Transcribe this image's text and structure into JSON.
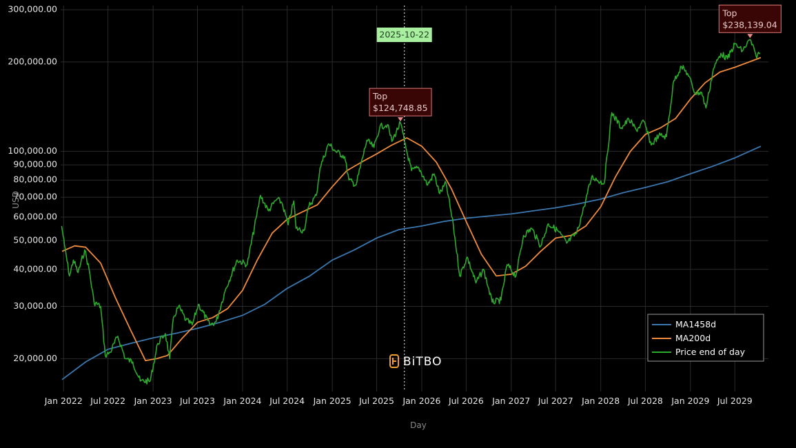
{
  "chart_data": {
    "type": "line",
    "title": "",
    "xlabel": "Day",
    "ylabel": "USD",
    "y_scale": "log",
    "ylim": [
      15500,
      310000
    ],
    "xlim": [
      "2021-12-20",
      "2029-11-15"
    ],
    "grid": true,
    "legend_position": "bottom-right",
    "y_ticks": [
      {
        "value": 20000,
        "label": "20,000.00"
      },
      {
        "value": 30000,
        "label": "30,000.00"
      },
      {
        "value": 40000,
        "label": "40,000.00"
      },
      {
        "value": 50000,
        "label": "50,000.00"
      },
      {
        "value": 60000,
        "label": "60,000.00"
      },
      {
        "value": 70000,
        "label": "70,000.00"
      },
      {
        "value": 80000,
        "label": "80,000.00"
      },
      {
        "value": 90000,
        "label": "90,000.00"
      },
      {
        "value": 100000,
        "label": "100,000.00"
      },
      {
        "value": 200000,
        "label": "200,000.00"
      },
      {
        "value": 300000,
        "label": "300,000.00"
      }
    ],
    "x_ticks": [
      {
        "date": "2022-01-01",
        "label": "Jan 2022"
      },
      {
        "date": "2022-07-01",
        "label": "Jul 2022"
      },
      {
        "date": "2023-01-01",
        "label": "Jan 2023"
      },
      {
        "date": "2023-07-01",
        "label": "Jul 2023"
      },
      {
        "date": "2024-01-01",
        "label": "Jan 2024"
      },
      {
        "date": "2024-07-01",
        "label": "Jul 2024"
      },
      {
        "date": "2025-01-01",
        "label": "Jan 2025"
      },
      {
        "date": "2025-07-01",
        "label": "Jul 2025"
      },
      {
        "date": "2026-01-01",
        "label": "Jan 2026"
      },
      {
        "date": "2026-07-01",
        "label": "Jul 2026"
      },
      {
        "date": "2027-01-01",
        "label": "Jan 2027"
      },
      {
        "date": "2027-07-01",
        "label": "Jul 2027"
      },
      {
        "date": "2028-01-01",
        "label": "Jan 2028"
      },
      {
        "date": "2028-07-01",
        "label": "Jul 2028"
      },
      {
        "date": "2029-01-01",
        "label": "Jan 2029"
      },
      {
        "date": "2029-07-01",
        "label": "Jul 2029"
      }
    ],
    "series": [
      {
        "name": "MA1458d",
        "color": "#3b78b0",
        "points": [
          [
            "2021-12-26",
            17000
          ],
          [
            "2022-04-01",
            19500
          ],
          [
            "2022-07-01",
            21500
          ],
          [
            "2022-10-01",
            22500
          ],
          [
            "2023-01-01",
            23500
          ],
          [
            "2023-04-01",
            24300
          ],
          [
            "2023-07-01",
            25300
          ],
          [
            "2023-10-01",
            26500
          ],
          [
            "2024-01-01",
            28000
          ],
          [
            "2024-04-01",
            30500
          ],
          [
            "2024-07-01",
            34500
          ],
          [
            "2024-10-01",
            38000
          ],
          [
            "2025-01-01",
            43000
          ],
          [
            "2025-04-01",
            46500
          ],
          [
            "2025-07-01",
            51000
          ],
          [
            "2025-10-01",
            54500
          ],
          [
            "2026-01-01",
            56000
          ],
          [
            "2026-04-01",
            58000
          ],
          [
            "2026-07-01",
            59500
          ],
          [
            "2026-10-01",
            60500
          ],
          [
            "2027-01-01",
            61500
          ],
          [
            "2027-04-01",
            63000
          ],
          [
            "2027-07-01",
            64500
          ],
          [
            "2027-10-01",
            66500
          ],
          [
            "2028-01-01",
            69000
          ],
          [
            "2028-04-01",
            72500
          ],
          [
            "2028-07-01",
            75500
          ],
          [
            "2028-10-01",
            79000
          ],
          [
            "2029-01-01",
            84000
          ],
          [
            "2029-04-01",
            89000
          ],
          [
            "2029-07-01",
            95000
          ],
          [
            "2029-10-15",
            104000
          ]
        ]
      },
      {
        "name": "MA200d",
        "color": "#f08c3c",
        "points": [
          [
            "2021-12-26",
            46000
          ],
          [
            "2022-02-15",
            48000
          ],
          [
            "2022-04-01",
            47500
          ],
          [
            "2022-06-01",
            42000
          ],
          [
            "2022-08-01",
            32000
          ],
          [
            "2022-10-01",
            25000
          ],
          [
            "2022-12-01",
            19700
          ],
          [
            "2023-01-15",
            20000
          ],
          [
            "2023-03-01",
            20500
          ],
          [
            "2023-05-01",
            23500
          ],
          [
            "2023-07-01",
            26500
          ],
          [
            "2023-09-01",
            27500
          ],
          [
            "2023-11-01",
            29500
          ],
          [
            "2024-01-01",
            34000
          ],
          [
            "2024-03-01",
            43000
          ],
          [
            "2024-05-01",
            53000
          ],
          [
            "2024-07-01",
            59000
          ],
          [
            "2024-09-01",
            62500
          ],
          [
            "2024-11-01",
            66000
          ],
          [
            "2025-01-01",
            76000
          ],
          [
            "2025-03-01",
            86000
          ],
          [
            "2025-05-01",
            92000
          ],
          [
            "2025-07-01",
            98000
          ],
          [
            "2025-09-01",
            105000
          ],
          [
            "2025-11-01",
            111000
          ],
          [
            "2026-01-01",
            104000
          ],
          [
            "2026-03-01",
            92000
          ],
          [
            "2026-05-01",
            75000
          ],
          [
            "2026-07-01",
            58000
          ],
          [
            "2026-09-01",
            45000
          ],
          [
            "2026-11-01",
            38000
          ],
          [
            "2027-01-01",
            38500
          ],
          [
            "2027-03-01",
            41000
          ],
          [
            "2027-05-01",
            46000
          ],
          [
            "2027-07-01",
            51000
          ],
          [
            "2027-09-01",
            52000
          ],
          [
            "2027-11-01",
            56000
          ],
          [
            "2028-01-01",
            65000
          ],
          [
            "2028-03-01",
            82000
          ],
          [
            "2028-05-01",
            100000
          ],
          [
            "2028-07-01",
            114000
          ],
          [
            "2028-09-01",
            120000
          ],
          [
            "2028-11-01",
            129000
          ],
          [
            "2029-01-01",
            150000
          ],
          [
            "2029-03-01",
            170000
          ],
          [
            "2029-05-01",
            185000
          ],
          [
            "2029-07-01",
            192000
          ],
          [
            "2029-10-15",
            207000
          ]
        ]
      },
      {
        "name": "Price end of day",
        "color": "#2eaa2e",
        "points": [
          [
            "2021-12-24",
            56000
          ],
          [
            "2022-01-05",
            48000
          ],
          [
            "2022-01-25",
            38000
          ],
          [
            "2022-02-10",
            43000
          ],
          [
            "2022-03-01",
            39000
          ],
          [
            "2022-03-28",
            46500
          ],
          [
            "2022-04-15",
            40000
          ],
          [
            "2022-05-05",
            31000
          ],
          [
            "2022-06-01",
            30000
          ],
          [
            "2022-06-20",
            20500
          ],
          [
            "2022-07-10",
            21000
          ],
          [
            "2022-08-10",
            23800
          ],
          [
            "2022-09-10",
            20000
          ],
          [
            "2022-10-10",
            19500
          ],
          [
            "2022-11-10",
            16800
          ],
          [
            "2022-12-20",
            16800
          ],
          [
            "2023-01-20",
            22500
          ],
          [
            "2023-02-20",
            24300
          ],
          [
            "2023-03-10",
            20000
          ],
          [
            "2023-03-25",
            27500
          ],
          [
            "2023-04-15",
            30000
          ],
          [
            "2023-05-15",
            27000
          ],
          [
            "2023-06-10",
            26000
          ],
          [
            "2023-07-05",
            30500
          ],
          [
            "2023-08-20",
            26000
          ],
          [
            "2023-09-15",
            26600
          ],
          [
            "2023-10-25",
            34500
          ],
          [
            "2023-12-10",
            43000
          ],
          [
            "2024-01-20",
            41500
          ],
          [
            "2024-02-28",
            61000
          ],
          [
            "2024-03-14",
            71000
          ],
          [
            "2024-04-15",
            63000
          ],
          [
            "2024-05-20",
            69000
          ],
          [
            "2024-06-10",
            67000
          ],
          [
            "2024-07-05",
            56500
          ],
          [
            "2024-07-28",
            68000
          ],
          [
            "2024-08-06",
            55000
          ],
          [
            "2024-09-07",
            54000
          ],
          [
            "2024-09-28",
            65500
          ],
          [
            "2024-10-28",
            71000
          ],
          [
            "2024-11-12",
            88000
          ],
          [
            "2024-12-17",
            106000
          ],
          [
            "2025-01-15",
            100000
          ],
          [
            "2025-02-20",
            96000
          ],
          [
            "2025-03-10",
            80000
          ],
          [
            "2025-04-08",
            77000
          ],
          [
            "2025-05-22",
            109000
          ],
          [
            "2025-06-20",
            103000
          ],
          [
            "2025-07-14",
            121000
          ],
          [
            "2025-08-14",
            123000
          ],
          [
            "2025-09-01",
            108000
          ],
          [
            "2025-10-06",
            124748
          ],
          [
            "2025-10-22",
            108000
          ],
          [
            "2025-11-20",
            86000
          ],
          [
            "2025-12-20",
            88000
          ],
          [
            "2026-01-25",
            77000
          ],
          [
            "2026-02-20",
            84000
          ],
          [
            "2026-03-15",
            72000
          ],
          [
            "2026-04-10",
            78000
          ],
          [
            "2026-05-10",
            56000
          ],
          [
            "2026-06-05",
            38000
          ],
          [
            "2026-07-05",
            44000
          ],
          [
            "2026-08-10",
            36000
          ],
          [
            "2026-09-10",
            40000
          ],
          [
            "2026-10-15",
            31000
          ],
          [
            "2026-11-20",
            31500
          ],
          [
            "2026-12-15",
            41500
          ],
          [
            "2027-01-20",
            38000
          ],
          [
            "2027-02-20",
            52000
          ],
          [
            "2027-03-25",
            55000
          ],
          [
            "2027-05-01",
            48000
          ],
          [
            "2027-06-01",
            57000
          ],
          [
            "2027-07-10",
            54000
          ],
          [
            "2027-08-15",
            49000
          ],
          [
            "2027-09-25",
            53000
          ],
          [
            "2027-10-25",
            65000
          ],
          [
            "2027-11-25",
            82000
          ],
          [
            "2028-01-15",
            78000
          ],
          [
            "2028-02-15",
            135000
          ],
          [
            "2028-03-25",
            120000
          ],
          [
            "2028-04-25",
            128000
          ],
          [
            "2028-05-25",
            118000
          ],
          [
            "2028-06-25",
            126000
          ],
          [
            "2028-07-25",
            105000
          ],
          [
            "2028-08-25",
            113000
          ],
          [
            "2028-09-25",
            112000
          ],
          [
            "2028-10-25",
            173000
          ],
          [
            "2028-11-25",
            193000
          ],
          [
            "2028-12-20",
            183000
          ],
          [
            "2029-01-20",
            157000
          ],
          [
            "2029-02-15",
            158000
          ],
          [
            "2029-03-05",
            140000
          ],
          [
            "2029-04-05",
            190000
          ],
          [
            "2029-05-05",
            214000
          ],
          [
            "2029-06-01",
            205000
          ],
          [
            "2029-07-01",
            230000
          ],
          [
            "2029-08-01",
            218000
          ],
          [
            "2029-09-01",
            238139
          ],
          [
            "2029-09-25",
            210000
          ],
          [
            "2029-10-12",
            214000
          ]
        ]
      }
    ],
    "annotations": [
      {
        "label": "Top",
        "value_label": "$124,748.85",
        "date": "2025-10-06",
        "value": 124748.85
      },
      {
        "label": "Top",
        "value_label": "$238,139.04",
        "date": "2029-09-01",
        "value": 238139.04
      }
    ],
    "vertical_marker": {
      "date": "2025-10-22",
      "label": "2025-10-22"
    }
  },
  "watermark": {
    "brand": "BiTBO"
  }
}
